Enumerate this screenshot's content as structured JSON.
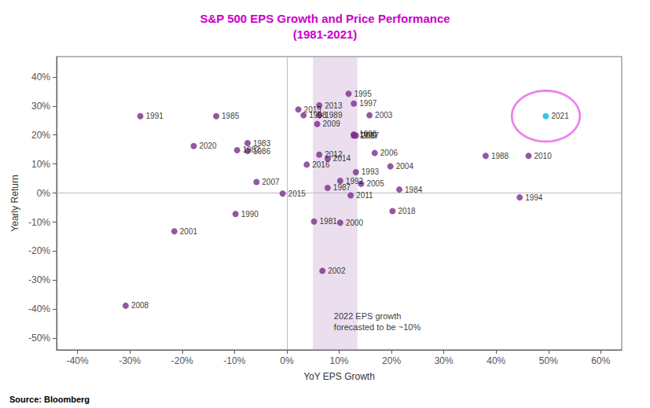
{
  "chart_data": {
    "type": "scatter",
    "title": "S&P 500 EPS Growth and Price Performance\n(1981-2021)",
    "title_color": "#CC00CC",
    "xlabel": "YoY EPS Growth",
    "ylabel": "Yearly Return",
    "source": "Source: Bloomberg",
    "xlim": [
      -0.44,
      0.64
    ],
    "ylim": [
      -0.54,
      0.47
    ],
    "xticks": [
      {
        "value": -0.4,
        "label": "-40%"
      },
      {
        "value": -0.3,
        "label": "-30%"
      },
      {
        "value": -0.2,
        "label": "-20%"
      },
      {
        "value": -0.1,
        "label": "-10%"
      },
      {
        "value": 0.0,
        "label": "0%"
      },
      {
        "value": 0.1,
        "label": "10%"
      },
      {
        "value": 0.2,
        "label": "20%"
      },
      {
        "value": 0.3,
        "label": "30%"
      },
      {
        "value": 0.4,
        "label": "40%"
      },
      {
        "value": 0.5,
        "label": "50%"
      },
      {
        "value": 0.6,
        "label": "60%"
      }
    ],
    "yticks": [
      {
        "value": -0.5,
        "label": "-50%"
      },
      {
        "value": -0.4,
        "label": "-40%"
      },
      {
        "value": -0.3,
        "label": "-30%"
      },
      {
        "value": -0.2,
        "label": "-20%"
      },
      {
        "value": -0.1,
        "label": "-10%"
      },
      {
        "value": 0.0,
        "label": "0%"
      },
      {
        "value": 0.1,
        "label": "10%"
      },
      {
        "value": 0.2,
        "label": "20%"
      },
      {
        "value": 0.3,
        "label": "30%"
      },
      {
        "value": 0.4,
        "label": "40%"
      }
    ],
    "grid": false,
    "x": [
      0.052,
      -0.095,
      -0.075,
      0.215,
      -0.135,
      -0.075,
      0.078,
      0.38,
      0.062,
      -0.098,
      -0.28,
      0.102,
      0.132,
      0.445,
      0.118,
      0.128,
      0.128,
      0.032,
      0.128,
      0.102,
      -0.215,
      0.068,
      0.158,
      0.198,
      0.142,
      0.168,
      -0.058,
      -0.308,
      0.058,
      0.462,
      0.122,
      0.062,
      0.062,
      0.078,
      -0.008,
      0.038,
      0.132,
      0.202,
      0.022,
      -0.178,
      0.495
    ],
    "y": [
      -0.098,
      0.148,
      0.172,
      0.012,
      0.265,
      0.145,
      0.018,
      0.128,
      0.268,
      -0.072,
      0.265,
      0.042,
      0.072,
      -0.015,
      0.342,
      0.202,
      0.308,
      0.268,
      0.198,
      -0.102,
      -0.132,
      -0.268,
      0.268,
      0.092,
      0.032,
      0.138,
      0.038,
      -0.388,
      0.238,
      0.128,
      -0.008,
      0.132,
      0.302,
      0.118,
      -0.002,
      0.098,
      0.198,
      -0.062,
      0.288,
      0.162,
      0.265
    ],
    "labels": [
      "1981",
      "1982",
      "1983",
      "1984",
      "1985",
      "1986",
      "1987",
      "1988",
      "1989",
      "1990",
      "1991",
      "1992",
      "1993",
      "1994",
      "1995",
      "1996",
      "1997",
      "1998",
      "1999",
      "2000",
      "2001",
      "2002",
      "2003",
      "2004",
      "2005",
      "2006",
      "2007",
      "2008",
      "2009",
      "2010",
      "2011",
      "2012",
      "2013",
      "2014",
      "2015",
      "2016",
      "2017",
      "2018",
      "2019",
      "2020",
      "2021"
    ],
    "colors": [
      "#7B2D8B",
      "#7B2D8B",
      "#7B2D8B",
      "#7B2D8B",
      "#7B2D8B",
      "#7B2D8B",
      "#7B2D8B",
      "#7B2D8B",
      "#7B2D8B",
      "#7B2D8B",
      "#7B2D8B",
      "#7B2D8B",
      "#7B2D8B",
      "#7B2D8B",
      "#7B2D8B",
      "#7B2D8B",
      "#7B2D8B",
      "#7B2D8B",
      "#7B2D8B",
      "#7B2D8B",
      "#7B2D8B",
      "#7B2D8B",
      "#7B2D8B",
      "#7B2D8B",
      "#7B2D8B",
      "#7B2D8B",
      "#7B2D8B",
      "#7B2D8B",
      "#7B2D8B",
      "#7B2D8B",
      "#7B2D8B",
      "#7B2D8B",
      "#7B2D8B",
      "#7B2D8B",
      "#7B2D8B",
      "#7B2D8B",
      "#7B2D8B",
      "#7B2D8B",
      "#7B2D8B",
      "#7B2D8B",
      "#00BCD4"
    ],
    "shaded_region": {
      "xmin": 0.05,
      "xmax": 0.135,
      "color": "#C9A8D4"
    },
    "zero_lines": {
      "x": 0,
      "y": 0
    },
    "annotation": {
      "text": "2022 EPS growth\nforecasted to be ~10%",
      "x": 0.09,
      "y": -0.405
    },
    "circle": {
      "cx": 0.495,
      "cy": 0.265,
      "width": 0.13,
      "height": 0.175,
      "color": "#EE82EE"
    }
  }
}
